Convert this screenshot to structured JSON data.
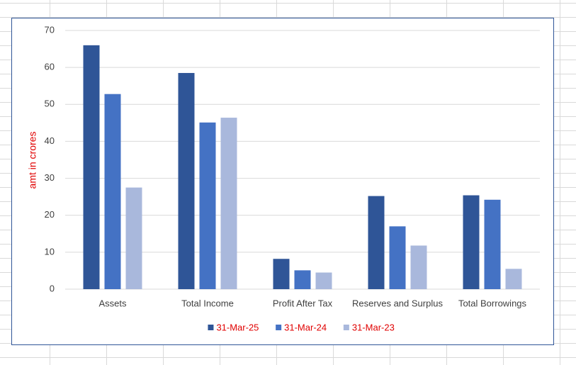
{
  "chart_data": {
    "type": "bar",
    "y_label": "amt in crores",
    "categories": [
      "Assets",
      "Total Income",
      "Profit After Tax",
      "Reserves and Surplus",
      "Total Borrowings"
    ],
    "series": [
      {
        "name": "31-Mar-25",
        "color": "#2f5597",
        "values": [
          66.0,
          58.5,
          8.2,
          25.2,
          25.4
        ]
      },
      {
        "name": "31-Mar-24",
        "color": "#4472c4",
        "values": [
          52.8,
          45.1,
          5.1,
          17.0,
          24.2
        ]
      },
      {
        "name": "31-Mar-23",
        "color": "#a9b8dc",
        "values": [
          27.5,
          46.4,
          4.5,
          11.8,
          5.5
        ]
      }
    ],
    "ylim": [
      0,
      70
    ],
    "yticks": [
      0,
      10,
      20,
      30,
      40,
      50,
      60,
      70
    ],
    "grid": true,
    "legend": "bottom"
  }
}
